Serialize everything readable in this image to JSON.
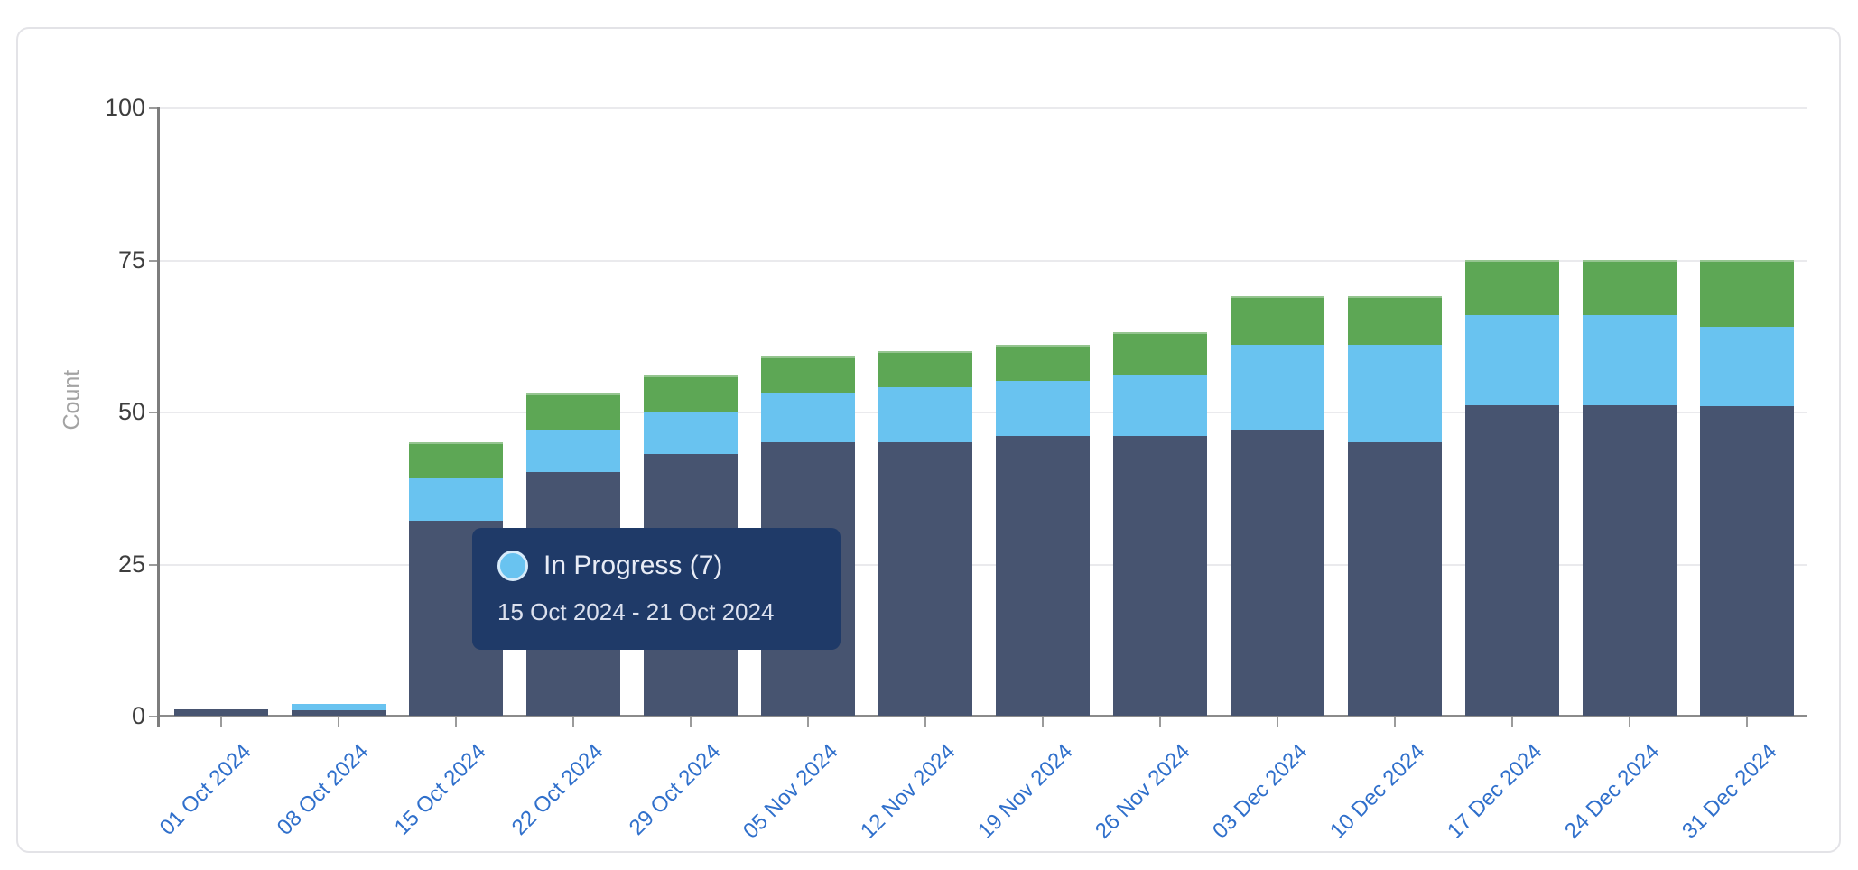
{
  "chart_data": {
    "type": "bar",
    "stacked": true,
    "title": "",
    "xlabel": "",
    "ylabel": "Count",
    "ylim": [
      0,
      100
    ],
    "yticks": [
      0,
      25,
      50,
      75,
      100
    ],
    "grid": true,
    "legend": "none",
    "categories": [
      "01 Oct 2024",
      "08 Oct 2024",
      "15 Oct 2024",
      "22 Oct 2024",
      "29 Oct 2024",
      "05 Nov 2024",
      "12 Nov 2024",
      "19 Nov 2024",
      "26 Nov 2024",
      "03 Dec 2024",
      "10 Dec 2024",
      "17 Dec 2024",
      "24 Dec 2024",
      "31 Dec 2024"
    ],
    "series": [
      {
        "name": "",
        "color": "#475470",
        "values": [
          1,
          1,
          32,
          40,
          43,
          45,
          45,
          46,
          46,
          47,
          45,
          51,
          51,
          51
        ]
      },
      {
        "name": "In Progress",
        "color": "#69C3F0",
        "values": [
          0,
          1,
          7,
          7,
          7,
          8,
          9,
          9,
          10,
          14,
          16,
          15,
          15,
          13
        ]
      },
      {
        "name": "",
        "color": "#5DA755",
        "values": [
          0,
          0,
          6,
          6,
          6,
          6,
          6,
          6,
          7,
          8,
          8,
          9,
          9,
          11
        ]
      }
    ],
    "totals": [
      1,
      2,
      45,
      53,
      56,
      59,
      60,
      61,
      63,
      69,
      69,
      75,
      75,
      75
    ]
  },
  "tooltip": {
    "title": "In Progress (7)",
    "date_range": "15 Oct 2024 - 21 Oct 2024",
    "marker_color": "#69C3F0",
    "background": "#1F3A68",
    "anchor_category": "15 Oct 2024"
  },
  "colors": {
    "bar_dark": "#475470",
    "bar_blue": "#69C3F0",
    "bar_green": "#5DA755",
    "x_label": "#2F6FCB",
    "y_label": "#3E3E3E",
    "count_label": "#A3A3A3",
    "gridline": "#EAEAED",
    "axis_line": "#7D7D7D",
    "card_border": "#E3E3E7"
  }
}
